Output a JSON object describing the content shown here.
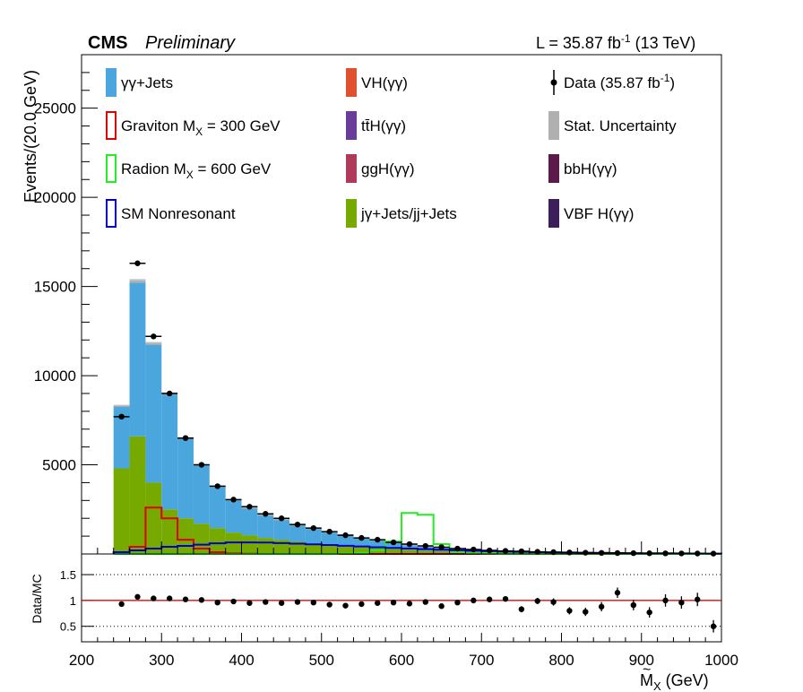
{
  "header": {
    "cms": "CMS",
    "preliminary": "Preliminary",
    "lumi": "L = 35.87 fb",
    "lumi_sup": "-1",
    "energy": " (13 TeV)"
  },
  "axes": {
    "ylabel_main": "Events/(20.0 GeV)",
    "ylabel_ratio": "Data/MC",
    "xlabel": "M",
    "xlabel_sub": "X",
    "xlabel_unit": " (GeV)"
  },
  "legend": [
    {
      "name": "γγ+Jets",
      "style": "fill",
      "color": "#4aa6dc"
    },
    {
      "name": "VH(γγ)",
      "style": "fill",
      "color": "#e05030"
    },
    {
      "name": "Data (35.87 fb",
      "sup": "-1",
      "tail": ")",
      "style": "data",
      "color": "#000000"
    },
    {
      "name": "Graviton M",
      "sub": "X",
      "tail": " = 300 GeV",
      "style": "line",
      "color": "#e00000"
    },
    {
      "name": "tt̄H(γγ)",
      "style": "fill",
      "color": "#6a3d9a"
    },
    {
      "name": "Stat. Uncertainty",
      "style": "fill",
      "color": "#b0b0b0"
    },
    {
      "name": "Radion M",
      "sub": "X",
      "tail": " = 600 GeV",
      "style": "line",
      "color": "#22ee22"
    },
    {
      "name": "ggH(γγ)",
      "style": "fill",
      "color": "#b03a5a"
    },
    {
      "name": "bbH(γγ)",
      "style": "fill",
      "color": "#5c1a4a"
    },
    {
      "name": "SM Nonresonant",
      "style": "line",
      "color": "#0000cc"
    },
    {
      "name": "jγ+Jets/jj+Jets",
      "style": "fill",
      "color": "#77aa00"
    },
    {
      "name": "VBF H(γγ)",
      "style": "fill",
      "color": "#3c1e5a"
    }
  ],
  "chart_data": [
    {
      "type": "bar",
      "panel": "main",
      "x_bin_edges": [
        240,
        260,
        280,
        300,
        320,
        340,
        360,
        380,
        400,
        420,
        440,
        460,
        480,
        500,
        520,
        540,
        560,
        580,
        600,
        620,
        640,
        660,
        680,
        700,
        720,
        740,
        760,
        780,
        800,
        820,
        840,
        860,
        880,
        900,
        920,
        940,
        960,
        980,
        1000
      ],
      "xlim": [
        200,
        1000
      ],
      "ylim": [
        0,
        28000
      ],
      "yticks": [
        5000,
        10000,
        15000,
        20000,
        25000
      ],
      "stacked_mc": [
        {
          "name": "jγ+Jets/jj+Jets",
          "values": [
            4800,
            6600,
            4000,
            2500,
            2000,
            1700,
            1450,
            1200,
            1050,
            900,
            800,
            700,
            600,
            520,
            450,
            400,
            340,
            280,
            230,
            180,
            150,
            120,
            100,
            90,
            80,
            70,
            60,
            50,
            45,
            40,
            35,
            30,
            28,
            25,
            22,
            20,
            18,
            16
          ]
        },
        {
          "name": "γγ+Jets",
          "values": [
            3500,
            8700,
            7800,
            6500,
            4500,
            3300,
            2350,
            1850,
            1550,
            1300,
            1150,
            950,
            850,
            730,
            650,
            520,
            460,
            400,
            300,
            270,
            210,
            170,
            150,
            120,
            100,
            90,
            80,
            70,
            60,
            55,
            50,
            45,
            40,
            35,
            30,
            28,
            25,
            22
          ]
        }
      ],
      "data_points": [
        7700,
        16300,
        12200,
        9000,
        6500,
        5000,
        3800,
        3050,
        2650,
        2250,
        2000,
        1650,
        1450,
        1250,
        1050,
        900,
        800,
        650,
        550,
        450,
        380,
        300,
        250,
        200,
        170,
        150,
        120,
        100,
        85,
        70,
        60,
        50,
        45,
        40,
        35,
        30,
        25,
        20
      ],
      "signals": [
        {
          "name": "Graviton M_X = 300 GeV",
          "values": [
            0,
            400,
            2600,
            2000,
            800,
            300,
            100,
            30,
            10,
            0,
            0,
            0,
            0,
            0,
            0,
            0,
            0,
            0,
            0,
            0,
            0,
            0,
            0,
            0,
            0,
            0,
            0,
            0,
            0,
            0,
            0,
            0,
            0,
            0,
            0,
            0,
            0,
            0
          ]
        },
        {
          "name": "Radion M_X = 600 GeV",
          "values": [
            0,
            0,
            0,
            0,
            0,
            0,
            0,
            0,
            0,
            0,
            0,
            0,
            0,
            0,
            20,
            60,
            200,
            700,
            2300,
            2200,
            550,
            100,
            30,
            10,
            0,
            0,
            0,
            0,
            0,
            0,
            0,
            0,
            0,
            0,
            0,
            0,
            0,
            0
          ]
        },
        {
          "name": "SM Nonresonant",
          "values": [
            100,
            200,
            300,
            400,
            450,
            520,
            600,
            650,
            650,
            640,
            610,
            580,
            540,
            500,
            460,
            420,
            380,
            340,
            300,
            270,
            240,
            210,
            180,
            160,
            140,
            120,
            100,
            90,
            80,
            70,
            60,
            50,
            45,
            40,
            35,
            30,
            25,
            20
          ]
        }
      ]
    },
    {
      "type": "scatter",
      "panel": "ratio",
      "xlim": [
        200,
        1000
      ],
      "ylim": [
        0.2,
        1.9
      ],
      "yticks": [
        0.5,
        1,
        1.5
      ],
      "ytick_labels": [
        "0.5",
        "1",
        "1.5"
      ],
      "x": [
        250,
        270,
        290,
        310,
        330,
        350,
        370,
        390,
        410,
        430,
        450,
        470,
        490,
        510,
        530,
        550,
        570,
        590,
        610,
        630,
        650,
        670,
        690,
        710,
        730,
        750,
        770,
        790,
        810,
        830,
        850,
        870,
        890,
        910,
        930,
        950,
        970,
        990
      ],
      "y": [
        0.93,
        1.07,
        1.04,
        1.04,
        1.02,
        1.01,
        0.96,
        0.98,
        0.95,
        0.97,
        0.95,
        0.97,
        0.96,
        0.92,
        0.9,
        0.93,
        0.95,
        0.96,
        0.94,
        0.97,
        0.89,
        0.96,
        1.0,
        1.02,
        1.03,
        0.83,
        0.99,
        0.97,
        0.8,
        0.78,
        0.88,
        1.15,
        0.91,
        0.77,
        1.0,
        0.96,
        1.02,
        0.5
      ],
      "yerr": [
        0.01,
        0.01,
        0.01,
        0.01,
        0.01,
        0.01,
        0.01,
        0.01,
        0.02,
        0.02,
        0.02,
        0.02,
        0.02,
        0.02,
        0.02,
        0.02,
        0.02,
        0.03,
        0.03,
        0.03,
        0.04,
        0.04,
        0.04,
        0.05,
        0.05,
        0.06,
        0.06,
        0.07,
        0.07,
        0.08,
        0.09,
        0.1,
        0.1,
        0.1,
        0.12,
        0.12,
        0.13,
        0.12
      ],
      "reference_line": 1.0
    }
  ],
  "xticks": [
    200,
    300,
    400,
    500,
    600,
    700,
    800,
    900,
    1000
  ]
}
